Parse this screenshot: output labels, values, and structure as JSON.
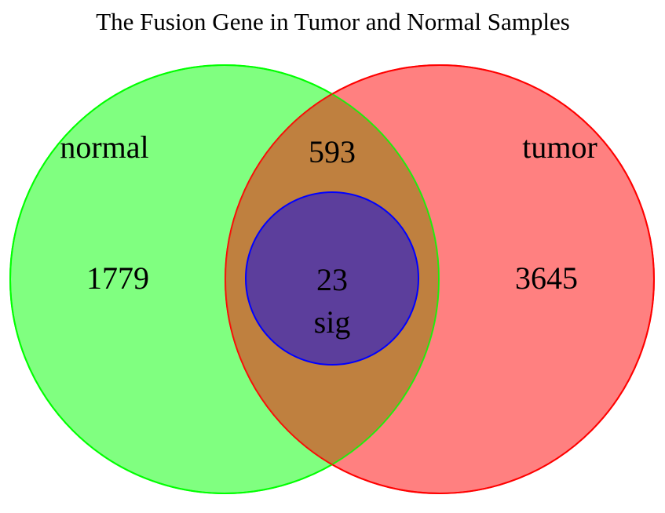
{
  "diagram": {
    "title": "The Fusion Gene in Tumor and Normal Samples",
    "sets": [
      {
        "id": "normal",
        "label": "normal",
        "color": "#00ff00",
        "fill": "#80ff80"
      },
      {
        "id": "tumor",
        "label": "tumor",
        "color": "#ff0000",
        "fill": "#ff8080"
      },
      {
        "id": "sig",
        "label": "sig",
        "color": "#0000ff",
        "fill": "#5c3e9c"
      }
    ],
    "overlap_color": "#bf803f",
    "regions": {
      "normal_only": "1779",
      "tumor_only": "3645",
      "normal_and_tumor": "593",
      "sig": "23"
    }
  }
}
